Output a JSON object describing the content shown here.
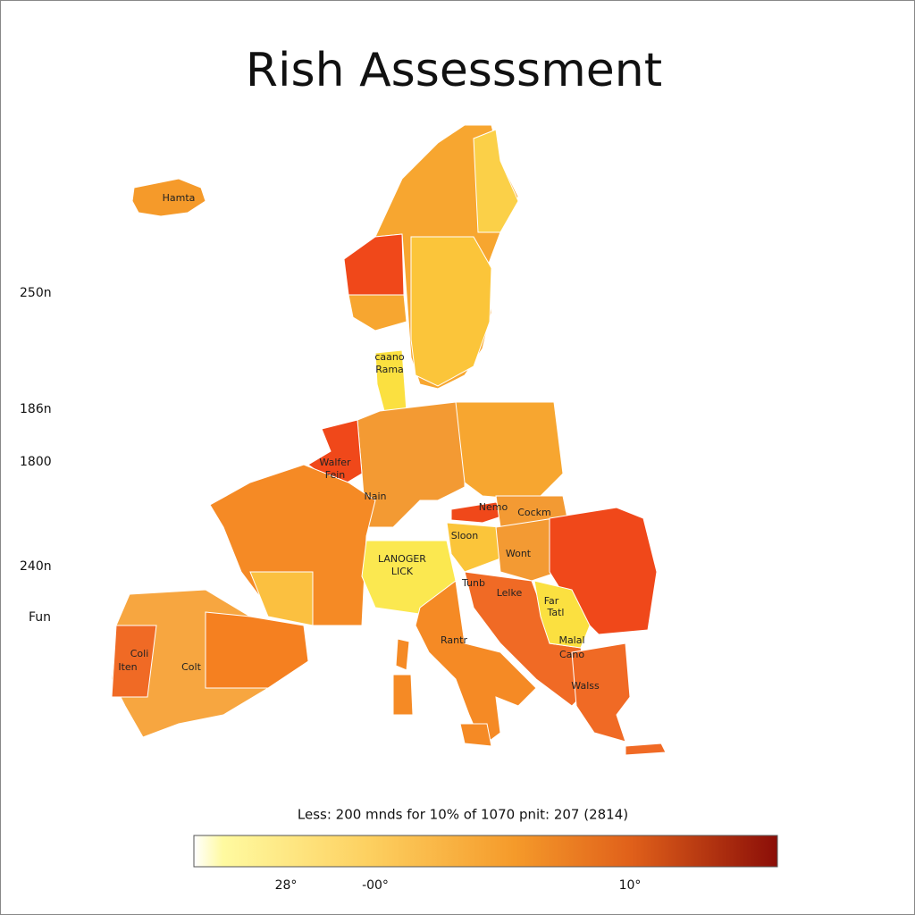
{
  "title": "Rish Assesssment",
  "side_labels": [
    "250n",
    "186n",
    "1800",
    "240n",
    "Fun"
  ],
  "regions": [
    {
      "label": "Hamta"
    },
    {
      "label": "caano"
    },
    {
      "label": "Rama"
    },
    {
      "label": "Walfer"
    },
    {
      "label": "Fein"
    },
    {
      "label": "Nain"
    },
    {
      "label": "Nemo"
    },
    {
      "label": "Cockm"
    },
    {
      "label": "Sloon"
    },
    {
      "label": "LANOGER"
    },
    {
      "label": "LICK"
    },
    {
      "label": "Wont"
    },
    {
      "label": "Tunb"
    },
    {
      "label": "Lelke"
    },
    {
      "label": "Far"
    },
    {
      "label": "Tatl"
    },
    {
      "label": "Malal"
    },
    {
      "label": "Cano"
    },
    {
      "label": "Walss"
    },
    {
      "label": "Rantr"
    },
    {
      "label": "Coli"
    },
    {
      "label": "Iten"
    },
    {
      "label": "Colt"
    }
  ],
  "legend": {
    "caption": "Less: 200 mnds for 10% of 1070 pnit: 207 (2814)",
    "tick_labels": [
      "28°",
      "-00°",
      "10°"
    ]
  }
}
